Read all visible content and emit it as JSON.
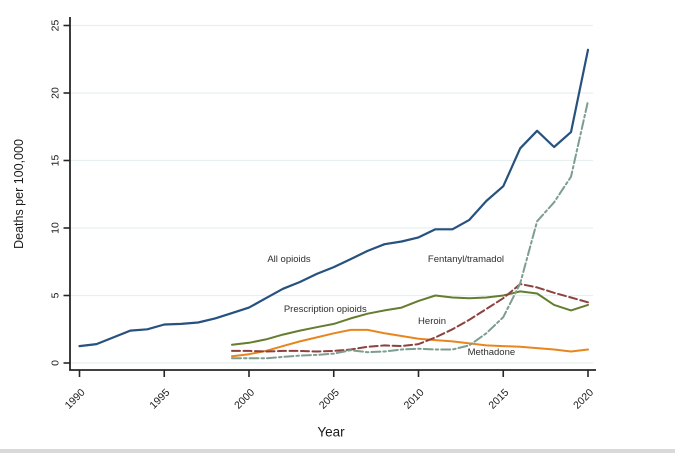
{
  "figure": {
    "y_axis_title": "Deaths per 100,000",
    "x_axis_title": "Year"
  },
  "chart_data": {
    "type": "line",
    "title": "",
    "xlabel": "Year",
    "ylabel": "Deaths per 100,000",
    "ylim": [
      0,
      25
    ],
    "xlim": [
      1989.5,
      2020.5
    ],
    "grid": "horizontal",
    "legend": "inline-annotations",
    "y_ticks": [
      0,
      5,
      10,
      15,
      20,
      25
    ],
    "x_ticks": [
      1990,
      1995,
      2000,
      2005,
      2010,
      2015,
      2020
    ],
    "colors": {
      "grid": "#e6f0f1",
      "axis": "#262626",
      "all_opioids": "#27517e",
      "prescription_opioids": "#647d2f",
      "methadone": "#e8861d",
      "heroin": "#8e4141",
      "fentanyl_tramadol": "#7d9d8f"
    },
    "series": [
      {
        "name": "All opioids",
        "color": "#27517e",
        "style": "solid",
        "width": 2.2,
        "x_start": 1990,
        "values": [
          1.25,
          1.4,
          1.9,
          2.4,
          2.5,
          2.85,
          2.9,
          3.0,
          3.3,
          3.7,
          4.1,
          4.8,
          5.5,
          6.0,
          6.6,
          7.1,
          7.7,
          8.3,
          8.8,
          9.0,
          9.3,
          9.9,
          9.9,
          10.6,
          12.0,
          13.1,
          15.9,
          17.2,
          16.0,
          17.1,
          23.2
        ]
      },
      {
        "name": "Prescription opioids",
        "color": "#647d2f",
        "style": "solid",
        "width": 2,
        "x_start": 1999,
        "values": [
          1.35,
          1.5,
          1.75,
          2.1,
          2.4,
          2.65,
          2.9,
          3.3,
          3.65,
          3.9,
          4.1,
          4.6,
          5.0,
          4.85,
          4.8,
          4.85,
          5.0,
          5.3,
          5.15,
          4.3,
          3.9,
          4.3
        ]
      },
      {
        "name": "Methadone",
        "color": "#e8861d",
        "style": "solid",
        "width": 2,
        "x_start": 1999,
        "values": [
          0.5,
          0.65,
          0.9,
          1.25,
          1.6,
          1.9,
          2.2,
          2.45,
          2.45,
          2.2,
          2.0,
          1.8,
          1.7,
          1.6,
          1.45,
          1.3,
          1.25,
          1.2,
          1.1,
          1.0,
          0.85,
          1.0
        ]
      },
      {
        "name": "Heroin",
        "color": "#8e4141",
        "style": "dashed",
        "width": 2,
        "x_start": 1999,
        "values": [
          0.9,
          0.9,
          0.85,
          0.9,
          0.9,
          0.85,
          0.9,
          1.0,
          1.2,
          1.3,
          1.25,
          1.4,
          1.9,
          2.5,
          3.2,
          4.0,
          4.8,
          5.85,
          5.6,
          5.2,
          4.85,
          4.5
        ]
      },
      {
        "name": "Fentanyl/tramadol",
        "color": "#7d9d8f",
        "style": "dashdot",
        "width": 2,
        "x_start": 1999,
        "values": [
          0.35,
          0.35,
          0.35,
          0.45,
          0.55,
          0.6,
          0.7,
          0.95,
          0.8,
          0.85,
          1.0,
          1.05,
          1.0,
          1.0,
          1.3,
          2.2,
          3.4,
          5.9,
          10.5,
          11.9,
          13.8,
          19.4
        ]
      }
    ],
    "annotations": [
      {
        "label": "All opioids",
        "year": 2002.36,
        "value": 7.48
      },
      {
        "label": "Fentanyl/tramadol",
        "year": 2012.8,
        "value": 7.5
      },
      {
        "label": "Prescription opioids",
        "year": 2004.5,
        "value": 3.78
      },
      {
        "label": "Heroin",
        "year": 2010.8,
        "value": 2.89
      },
      {
        "label": "Methadone",
        "year": 2014.3,
        "value": 0.59
      }
    ]
  }
}
